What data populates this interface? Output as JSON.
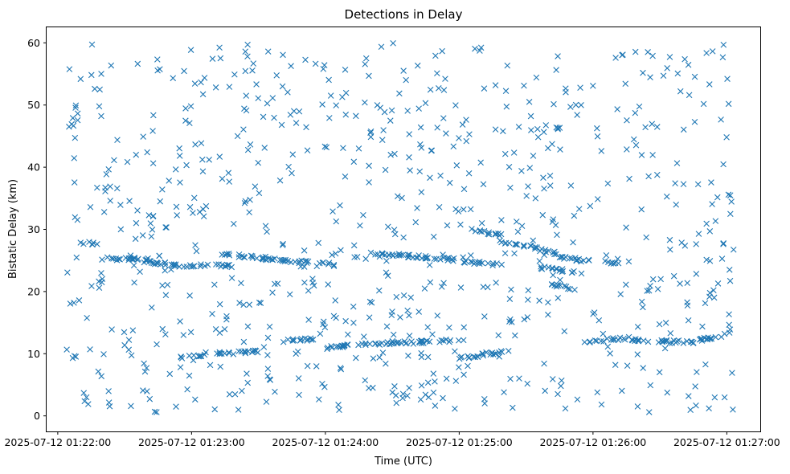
{
  "chart_data": {
    "type": "scatter",
    "title": "Detections in Delay",
    "xlabel": "Time (UTC)",
    "ylabel": "Bistatic Delay (km)",
    "marker": "x",
    "color": "#1f77b4",
    "grid": false,
    "legend": null,
    "xlim": [
      "2025-07-12 01:21:55",
      "2025-07-12 01:27:15"
    ],
    "ylim": [
      -2.5,
      62.5
    ],
    "x_ticks": [
      "2025-07-12 01:22:00",
      "2025-07-12 01:23:00",
      "2025-07-12 01:24:00",
      "2025-07-12 01:25:00",
      "2025-07-12 01:26:00",
      "2025-07-12 01:27:00"
    ],
    "y_ticks": [
      0,
      10,
      20,
      30,
      40,
      50,
      60
    ],
    "tracks": [
      {
        "x_start": "2025-07-12 01:22:10",
        "x_end": "2025-07-12 01:22:18",
        "y_start": 28.0,
        "y_end": 27.5
      },
      {
        "x_start": "2025-07-12 01:22:18",
        "x_end": "2025-07-12 01:22:42",
        "y_start": 25.4,
        "y_end": 25.1
      },
      {
        "x_start": "2025-07-12 01:22:36",
        "x_end": "2025-07-12 01:22:52",
        "y_start": 24.9,
        "y_end": 24.3
      },
      {
        "x_start": "2025-07-12 01:22:52",
        "x_end": "2025-07-12 01:23:20",
        "y_start": 24.2,
        "y_end": 24.1
      },
      {
        "x_start": "2025-07-12 01:23:13",
        "x_end": "2025-07-12 01:23:33",
        "y_start": 26.0,
        "y_end": 25.4
      },
      {
        "x_start": "2025-07-12 01:23:33",
        "x_end": "2025-07-12 01:24:05",
        "y_start": 25.3,
        "y_end": 24.3
      },
      {
        "x_start": "2025-07-12 01:24:20",
        "x_end": "2025-07-12 01:25:02",
        "y_start": 26.2,
        "y_end": 25.0
      },
      {
        "x_start": "2025-07-12 01:25:02",
        "x_end": "2025-07-12 01:25:20",
        "y_start": 24.8,
        "y_end": 24.3
      },
      {
        "x_start": "2025-07-12 01:25:05",
        "x_end": "2025-07-12 01:25:20",
        "y_start": 30.0,
        "y_end": 29.0
      },
      {
        "x_start": "2025-07-12 01:25:18",
        "x_end": "2025-07-12 01:25:36",
        "y_start": 28.0,
        "y_end": 27.0
      },
      {
        "x_start": "2025-07-12 01:25:33",
        "x_end": "2025-07-12 01:25:45",
        "y_start": 27.0,
        "y_end": 26.0
      },
      {
        "x_start": "2025-07-12 01:25:36",
        "x_end": "2025-07-12 01:25:52",
        "y_start": 24.0,
        "y_end": 23.0
      },
      {
        "x_start": "2025-07-12 01:25:40",
        "x_end": "2025-07-12 01:25:52",
        "y_start": 21.0,
        "y_end": 20.5
      },
      {
        "x_start": "2025-07-12 01:25:45",
        "x_end": "2025-07-12 01:26:00",
        "y_start": 25.5,
        "y_end": 24.8
      },
      {
        "x_start": "2025-07-12 01:26:05",
        "x_end": "2025-07-12 01:26:13",
        "y_start": 24.8,
        "y_end": 24.5
      },
      {
        "x_start": "2025-07-12 01:22:55",
        "x_end": "2025-07-12 01:23:05",
        "y_start": 9.3,
        "y_end": 9.8
      },
      {
        "x_start": "2025-07-12 01:23:05",
        "x_end": "2025-07-12 01:23:30",
        "y_start": 10.0,
        "y_end": 10.3
      },
      {
        "x_start": "2025-07-12 01:23:40",
        "x_end": "2025-07-12 01:23:56",
        "y_start": 12.0,
        "y_end": 12.4
      },
      {
        "x_start": "2025-07-12 01:24:00",
        "x_end": "2025-07-12 01:24:20",
        "y_start": 11.0,
        "y_end": 11.5
      },
      {
        "x_start": "2025-07-12 01:24:20",
        "x_end": "2025-07-12 01:25:02",
        "y_start": 11.5,
        "y_end": 12.2
      },
      {
        "x_start": "2025-07-12 01:25:00",
        "x_end": "2025-07-12 01:25:25",
        "y_start": 9.3,
        "y_end": 10.5
      },
      {
        "x_start": "2025-07-12 01:25:58",
        "x_end": "2025-07-12 01:26:14",
        "y_start": 12.0,
        "y_end": 12.5
      },
      {
        "x_start": "2025-07-12 01:26:14",
        "x_end": "2025-07-12 01:26:45",
        "y_start": 12.2,
        "y_end": 11.8
      },
      {
        "x_start": "2025-07-12 01:26:45",
        "x_end": "2025-07-12 01:27:03",
        "y_start": 12.0,
        "y_end": 13.3
      }
    ],
    "approx_point_count": 1200
  }
}
